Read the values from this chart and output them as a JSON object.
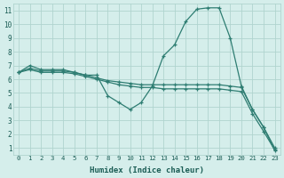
{
  "xlabel": "Humidex (Indice chaleur)",
  "background_color": "#d5eeeb",
  "grid_color": "#b0d4cf",
  "line_color": "#2e7d72",
  "xlim": [
    -0.5,
    23.5
  ],
  "ylim": [
    0.5,
    11.5
  ],
  "xticks": [
    0,
    1,
    2,
    3,
    4,
    5,
    6,
    7,
    8,
    9,
    10,
    11,
    12,
    13,
    14,
    15,
    16,
    17,
    18,
    19,
    20,
    21,
    22,
    23
  ],
  "yticks": [
    1,
    2,
    3,
    4,
    5,
    6,
    7,
    8,
    9,
    10,
    11
  ],
  "series": [
    {
      "x": [
        0,
        1,
        2,
        3,
        4,
        5,
        6,
        7,
        8,
        9,
        10,
        11,
        12,
        13,
        14,
        15,
        16,
        17,
        18,
        19,
        20,
        21,
        22,
        23
      ],
      "y": [
        6.5,
        7.0,
        6.7,
        6.7,
        6.7,
        6.5,
        6.3,
        6.3,
        4.8,
        4.3,
        3.8,
        4.3,
        5.5,
        7.7,
        8.5,
        10.2,
        11.1,
        11.2,
        11.2,
        9.0,
        5.5,
        3.8,
        2.5,
        0.8
      ]
    },
    {
      "x": [
        0,
        1,
        2,
        3,
        4,
        5,
        6,
        7,
        8,
        9,
        10,
        11,
        12,
        13,
        14,
        15,
        16,
        17,
        18,
        19,
        20,
        21,
        22,
        23
      ],
      "y": [
        6.5,
        6.8,
        6.6,
        6.6,
        6.6,
        6.5,
        6.3,
        6.1,
        5.9,
        5.8,
        5.7,
        5.6,
        5.6,
        5.6,
        5.6,
        5.6,
        5.6,
        5.6,
        5.6,
        5.5,
        5.4,
        3.8,
        2.5,
        1.0
      ]
    },
    {
      "x": [
        0,
        1,
        2,
        3,
        4,
        5,
        6,
        7,
        8,
        9,
        10,
        11,
        12,
        13,
        14,
        15,
        16,
        17,
        18,
        19,
        20,
        21,
        22,
        23
      ],
      "y": [
        6.5,
        6.7,
        6.5,
        6.5,
        6.5,
        6.4,
        6.2,
        6.0,
        5.8,
        5.6,
        5.5,
        5.4,
        5.4,
        5.3,
        5.3,
        5.3,
        5.3,
        5.3,
        5.3,
        5.2,
        5.1,
        3.5,
        2.2,
        0.85
      ]
    }
  ]
}
